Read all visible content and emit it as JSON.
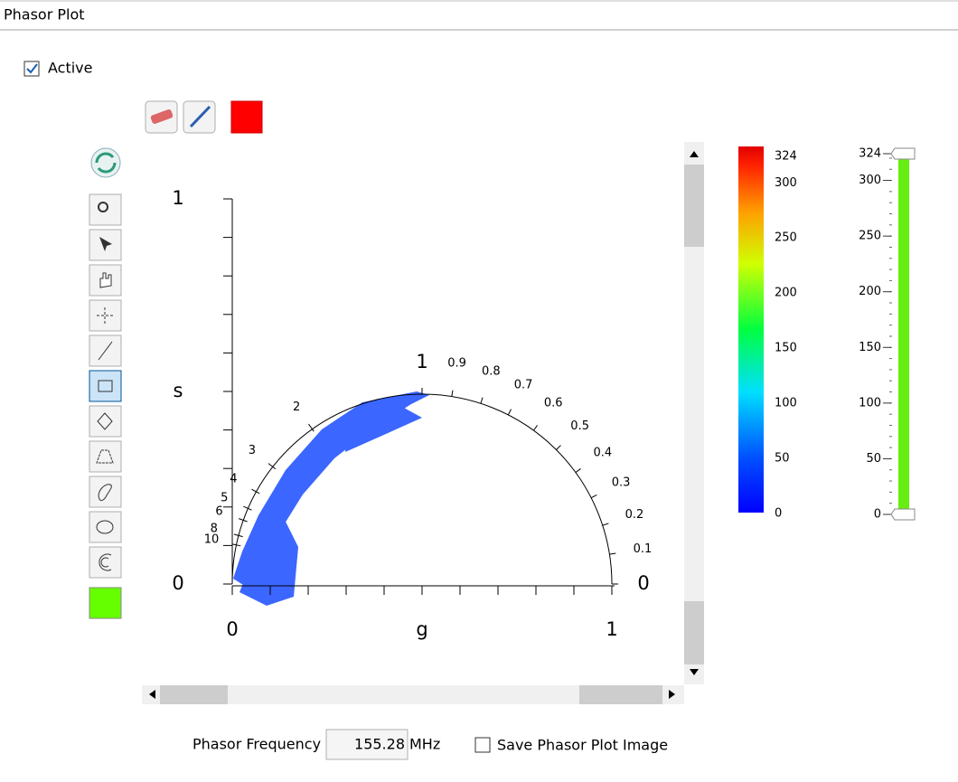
{
  "header": {
    "title": "Phasor Plot"
  },
  "active": {
    "label": "Active",
    "checked": true
  },
  "plot": {
    "type": "phasor",
    "x_label": "g",
    "y_label": "s",
    "xlim": [
      0,
      1
    ],
    "ylim": [
      0,
      1
    ],
    "xticks": [
      0,
      1
    ],
    "yticks": [
      0,
      1
    ],
    "fraction_ticks": [
      1,
      0.9,
      0.8,
      0.7,
      0.6,
      0.5,
      0.4,
      0.3,
      0.2,
      0.1,
      0
    ],
    "lifetime_ticks": [
      2,
      3,
      4,
      5,
      6,
      8,
      10
    ]
  },
  "colorbar": {
    "lim": [
      0,
      324
    ],
    "ticks": [
      324,
      300,
      250,
      200,
      150,
      100,
      50,
      0
    ]
  },
  "slider": {
    "lim": [
      0,
      324
    ],
    "ticks": [
      324,
      300,
      250,
      200,
      150,
      100,
      50,
      0
    ],
    "color": "#66ee11"
  },
  "footer": {
    "frequency_label": "Phasor Frequency",
    "frequency": 155.28,
    "frequency_unit": "MHz",
    "save_label": "Save Phasor Plot Image",
    "save_checked": false
  }
}
